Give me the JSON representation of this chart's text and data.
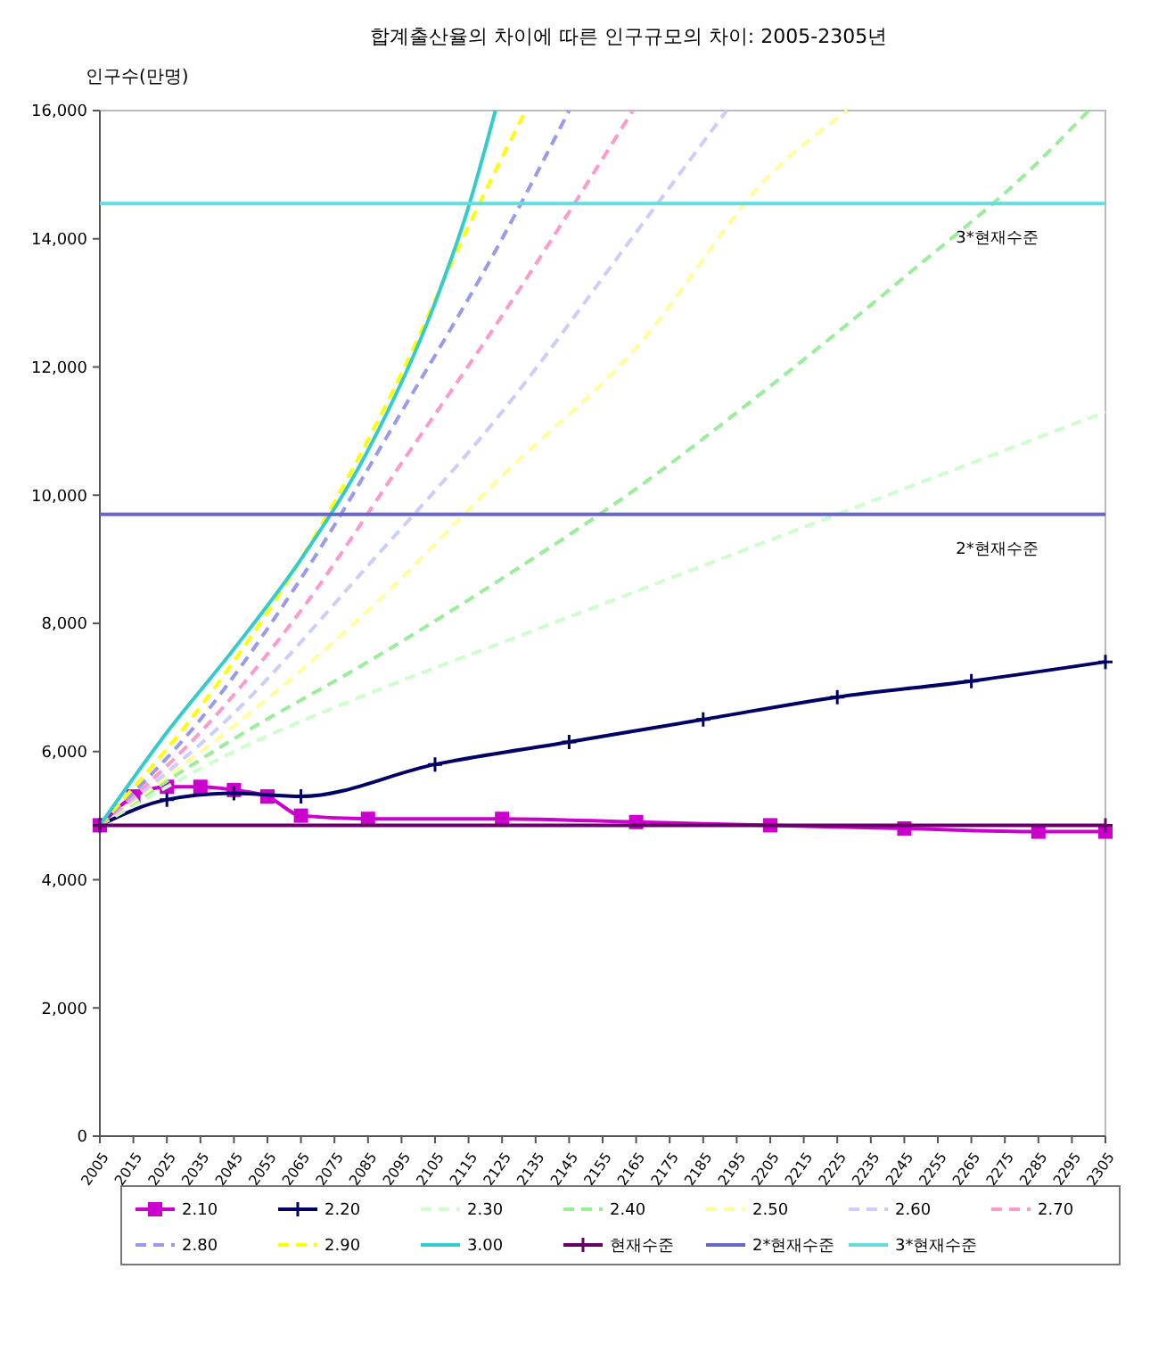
{
  "chart_data": {
    "type": "line",
    "title": "합계출산율의 차이에 따른 인구규모의 차이: 2005-2305년",
    "ylabel": "인구수(만명)",
    "xlim": [
      2005,
      2305
    ],
    "xticks": [
      2005,
      2015,
      2025,
      2035,
      2045,
      2055,
      2065,
      2075,
      2085,
      2095,
      2105,
      2115,
      2125,
      2135,
      2145,
      2155,
      2165,
      2175,
      2185,
      2195,
      2205,
      2215,
      2225,
      2235,
      2245,
      2255,
      2265,
      2275,
      2285,
      2295,
      2305
    ],
    "ylim": [
      0,
      16000
    ],
    "yticks": [
      {
        "value": 0,
        "label": "0"
      },
      {
        "value": 2000,
        "label": "2,000"
      },
      {
        "value": 4000,
        "label": "4,000"
      },
      {
        "value": 6000,
        "label": "6,000"
      },
      {
        "value": 8000,
        "label": "8,000"
      },
      {
        "value": 10000,
        "label": "10,000"
      },
      {
        "value": 12000,
        "label": "12,000"
      },
      {
        "value": 14000,
        "label": "14,000"
      },
      {
        "value": 16000,
        "label": "16,000"
      }
    ],
    "grid": false,
    "legend": "bottom",
    "series": [
      {
        "name": "2.10",
        "color": "#cc00cc",
        "marker": "square",
        "x": [
          2005,
          2015,
          2025,
          2035,
          2045,
          2055,
          2065,
          2085,
          2125,
          2165,
          2205,
          2245,
          2285,
          2305
        ],
        "values": [
          4850,
          5300,
          5450,
          5450,
          5400,
          5300,
          5000,
          4950,
          4950,
          4900,
          4850,
          4800,
          4750,
          4750
        ]
      },
      {
        "name": "2.20",
        "color": "#000066",
        "marker": "cross",
        "x": [
          2005,
          2025,
          2045,
          2065,
          2105,
          2145,
          2185,
          2225,
          2265,
          2305
        ],
        "values": [
          4850,
          5250,
          5350,
          5300,
          5800,
          6150,
          6500,
          6850,
          7100,
          7400
        ]
      },
      {
        "name": "2.30",
        "color": "#ccffcc",
        "line_style": "dashed",
        "x": [
          2005,
          2045,
          2085,
          2125,
          2165,
          2205,
          2245,
          2305
        ],
        "values": [
          4850,
          6000,
          6900,
          7700,
          8500,
          9300,
          10100,
          11300
        ]
      },
      {
        "name": "2.40",
        "color": "#99ee99",
        "line_style": "dashed",
        "x": [
          2005,
          2045,
          2085,
          2125,
          2165,
          2205,
          2245,
          2285,
          2300
        ],
        "values": [
          4850,
          6200,
          7400,
          8700,
          10100,
          11700,
          13400,
          15200,
          16000
        ]
      },
      {
        "name": "2.50",
        "color": "#ffff99",
        "line_style": "dashed",
        "x": [
          2005,
          2045,
          2085,
          2125,
          2165,
          2205,
          2228
        ],
        "values": [
          4850,
          6400,
          8200,
          10300,
          12300,
          15000,
          16000
        ]
      },
      {
        "name": "2.60",
        "color": "#ccccff",
        "line_style": "dashed",
        "x": [
          2005,
          2045,
          2085,
          2125,
          2165,
          2192
        ],
        "values": [
          4850,
          6600,
          8900,
          11300,
          14100,
          16000
        ]
      },
      {
        "name": "2.70",
        "color": "#ff99cc",
        "line_style": "dashed",
        "x": [
          2005,
          2035,
          2065,
          2095,
          2125,
          2164
        ],
        "values": [
          4850,
          6300,
          8200,
          10500,
          12800,
          16000
        ]
      },
      {
        "name": "2.80",
        "color": "#9999ee",
        "line_style": "dashed",
        "x": [
          2005,
          2035,
          2065,
          2095,
          2125,
          2145
        ],
        "values": [
          4850,
          6500,
          8700,
          11300,
          14000,
          16000
        ]
      },
      {
        "name": "2.90",
        "color": "#ffff00",
        "line_style": "dashed",
        "x": [
          2005,
          2035,
          2065,
          2095,
          2115,
          2132
        ],
        "values": [
          4850,
          6700,
          9000,
          11900,
          14200,
          16000
        ]
      },
      {
        "name": "3.00",
        "color": "#33cccc",
        "x": [
          2005,
          2025,
          2045,
          2065,
          2085,
          2105,
          2115,
          2123
        ],
        "values": [
          4850,
          6300,
          7600,
          9000,
          10700,
          13000,
          14500,
          16000
        ]
      },
      {
        "name": "현재수준",
        "color": "#660066",
        "marker": "cross",
        "x": [
          2005,
          2305
        ],
        "values": [
          4850,
          4850
        ]
      },
      {
        "name": "2*현재수준",
        "color": "#6666cc",
        "x": [
          2005,
          2305
        ],
        "values": [
          9700,
          9700
        ]
      },
      {
        "name": "3*현재수준",
        "color": "#66dddd",
        "x": [
          2005,
          2305
        ],
        "values": [
          14550,
          14550
        ]
      }
    ],
    "annotations": [
      {
        "text": "3*현재수준",
        "x": 2285,
        "y": 14550
      },
      {
        "text": "2*현재수준",
        "x": 2285,
        "y": 9700
      }
    ]
  }
}
